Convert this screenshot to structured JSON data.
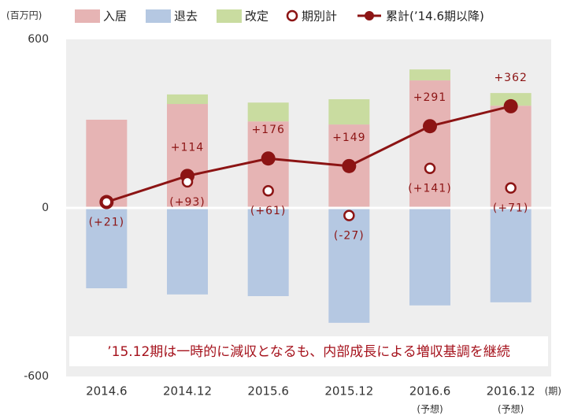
{
  "chart_data": {
    "type": "bar",
    "unit_label": "(百万円)",
    "xlabel": "(期)",
    "categories": [
      "2014.6",
      "2014.12",
      "2015.6",
      "2015.12",
      "2016.6",
      "2016.12"
    ],
    "x_sublabels": [
      null,
      null,
      null,
      null,
      "(予想)",
      "(予想)"
    ],
    "series": [
      {
        "name": "入居",
        "type": "bar",
        "color": "#e6b4b4",
        "values": [
          314,
          370,
          308,
          297,
          454,
          364
        ]
      },
      {
        "name": "退去",
        "type": "bar",
        "color": "#b5c8e2",
        "values": [
          -286,
          -308,
          -314,
          -409,
          -347,
          -336
        ]
      },
      {
        "name": "改定",
        "type": "bar",
        "color": "#c9dca0",
        "values": [
          0,
          34,
          67,
          90,
          39,
          45
        ]
      },
      {
        "name": "期別計",
        "type": "scatter",
        "color": "#8c1414",
        "values": [
          21,
          93,
          61,
          -27,
          141,
          71
        ],
        "value_labels": [
          "(+21)",
          "(+93)",
          "(+61)",
          "(-27)",
          "(+141)",
          "(+71)"
        ]
      },
      {
        "name": "累計(’14.6期以降)",
        "type": "line",
        "color": "#8c1414",
        "values": [
          21,
          114,
          176,
          149,
          291,
          362
        ],
        "value_labels": [
          null,
          "+114",
          "+176",
          "+149",
          "+291",
          "+362"
        ]
      }
    ],
    "annotation": "’15.12期は一時的に減収となるも、内部成長による増収基調を継続",
    "ylim": [
      -600,
      600
    ],
    "yticks": [
      -600,
      0,
      600
    ],
    "grid": true
  }
}
